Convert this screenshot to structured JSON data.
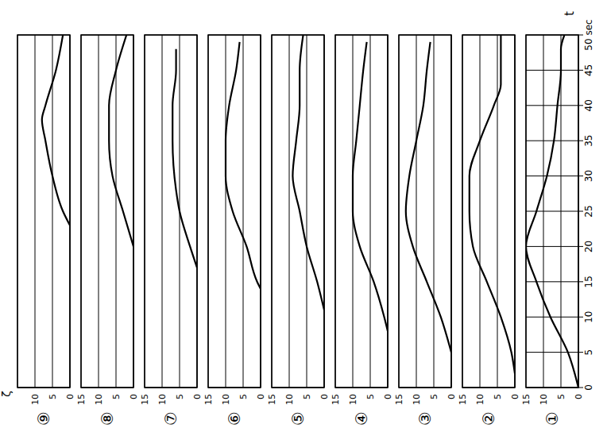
{
  "chart_data": [
    {
      "type": "line",
      "title": "①",
      "x_label": "t",
      "x": [
        0,
        5,
        10,
        15,
        20,
        25,
        30,
        35,
        40,
        45,
        48,
        50
      ],
      "values": [
        0,
        3,
        8,
        12,
        15,
        12,
        9,
        7,
        6,
        5,
        5,
        4
      ],
      "xlim": [
        0,
        50
      ],
      "ylim": [
        0,
        15
      ],
      "xticks": [
        0,
        5,
        10,
        15,
        20,
        25,
        30,
        35,
        40,
        45,
        {
          "value": 50,
          "label": "50 sec"
        }
      ],
      "yticks": [
        0,
        5,
        10,
        15
      ],
      "grid": true,
      "color": "#000000"
    },
    {
      "type": "line",
      "title": "②",
      "x": [
        2,
        5,
        10,
        15,
        20,
        25,
        30,
        35,
        40,
        43,
        50
      ],
      "values": [
        0,
        1,
        4,
        8,
        12,
        13,
        13,
        10,
        6,
        4,
        4
      ],
      "xlim": [
        0,
        50
      ],
      "ylim": [
        0,
        15
      ],
      "xticks": [
        0,
        5,
        10,
        15,
        20,
        25,
        30,
        35,
        40,
        45,
        50
      ],
      "yticks": [
        0,
        5,
        10,
        15
      ],
      "grid": true,
      "color": "#000000",
      "tick_labels": "y"
    },
    {
      "type": "line",
      "title": "③",
      "x": [
        5,
        10,
        15,
        20,
        25,
        30,
        35,
        40,
        45,
        49
      ],
      "values": [
        0,
        3,
        7,
        11,
        13,
        12,
        10,
        8,
        7,
        6
      ],
      "xlim": [
        0,
        50
      ],
      "ylim": [
        0,
        15
      ],
      "xticks": [
        0,
        5,
        10,
        15,
        20,
        25,
        30,
        35,
        40,
        45,
        50
      ],
      "yticks": [
        0,
        5,
        10,
        15
      ],
      "grid": true,
      "color": "#000000",
      "tick_labels": "y"
    },
    {
      "type": "line",
      "title": "④",
      "x": [
        8,
        10,
        15,
        20,
        25,
        30,
        35,
        40,
        45,
        49
      ],
      "values": [
        0,
        1,
        4,
        8,
        10,
        10,
        9,
        8,
        7,
        6
      ],
      "xlim": [
        0,
        50
      ],
      "ylim": [
        0,
        15
      ],
      "xticks": [
        0,
        5,
        10,
        15,
        20,
        25,
        30,
        35,
        40,
        45,
        50
      ],
      "yticks": [
        0,
        5,
        10,
        15
      ],
      "grid": true,
      "color": "#000000",
      "tick_labels": "y"
    },
    {
      "type": "line",
      "title": "⑤",
      "x": [
        11,
        15,
        20,
        25,
        30,
        35,
        40,
        45,
        50
      ],
      "values": [
        0,
        2,
        5,
        7,
        9,
        8,
        7,
        7,
        6
      ],
      "xlim": [
        0,
        50
      ],
      "ylim": [
        0,
        15
      ],
      "xticks": [
        0,
        5,
        10,
        15,
        20,
        25,
        30,
        35,
        40,
        45,
        50
      ],
      "yticks": [
        0,
        5,
        10,
        15
      ],
      "grid": true,
      "color": "#000000",
      "tick_labels": "y"
    },
    {
      "type": "line",
      "title": "⑥",
      "x": [
        14,
        15,
        20,
        25,
        30,
        35,
        40,
        45,
        49
      ],
      "values": [
        0,
        1,
        4,
        8,
        10,
        10,
        9,
        7,
        6
      ],
      "xlim": [
        0,
        50
      ],
      "ylim": [
        0,
        15
      ],
      "xticks": [
        0,
        5,
        10,
        15,
        20,
        25,
        30,
        35,
        40,
        45,
        50
      ],
      "yticks": [
        0,
        5,
        10,
        15
      ],
      "grid": true,
      "color": "#000000",
      "tick_labels": "y"
    },
    {
      "type": "line",
      "title": "⑦",
      "x": [
        17,
        20,
        25,
        28,
        35,
        40,
        45,
        48
      ],
      "values": [
        0,
        2,
        5,
        6,
        7,
        7,
        6,
        6
      ],
      "xlim": [
        0,
        50
      ],
      "ylim": [
        0,
        15
      ],
      "xticks": [
        0,
        5,
        10,
        15,
        20,
        25,
        30,
        35,
        40,
        45,
        50
      ],
      "yticks": [
        0,
        5,
        10,
        15
      ],
      "grid": true,
      "color": "#000000",
      "tick_labels": "y"
    },
    {
      "type": "line",
      "title": "⑧",
      "x": [
        20,
        25,
        30,
        35,
        40,
        45,
        50
      ],
      "values": [
        0,
        3,
        6,
        7,
        7,
        5,
        2
      ],
      "xlim": [
        0,
        50
      ],
      "ylim": [
        0,
        15
      ],
      "xticks": [
        0,
        5,
        10,
        15,
        20,
        25,
        30,
        35,
        40,
        45,
        50
      ],
      "yticks": [
        0,
        5,
        10,
        15
      ],
      "grid": true,
      "color": "#000000",
      "tick_labels": "y"
    },
    {
      "type": "line",
      "title": "⑨",
      "y_label": "ζ",
      "x": [
        23,
        25,
        30,
        35,
        38,
        40,
        45,
        50
      ],
      "values": [
        0,
        2,
        5,
        7,
        8,
        7,
        4,
        2
      ],
      "xlim": [
        0,
        50
      ],
      "ylim": [
        0,
        15
      ],
      "xticks": [
        0,
        5,
        10,
        15,
        20,
        25,
        30,
        35,
        40,
        45,
        50
      ],
      "yticks": [
        0,
        5,
        10
      ],
      "grid": true,
      "color": "#000000",
      "tick_labels": "y"
    }
  ]
}
